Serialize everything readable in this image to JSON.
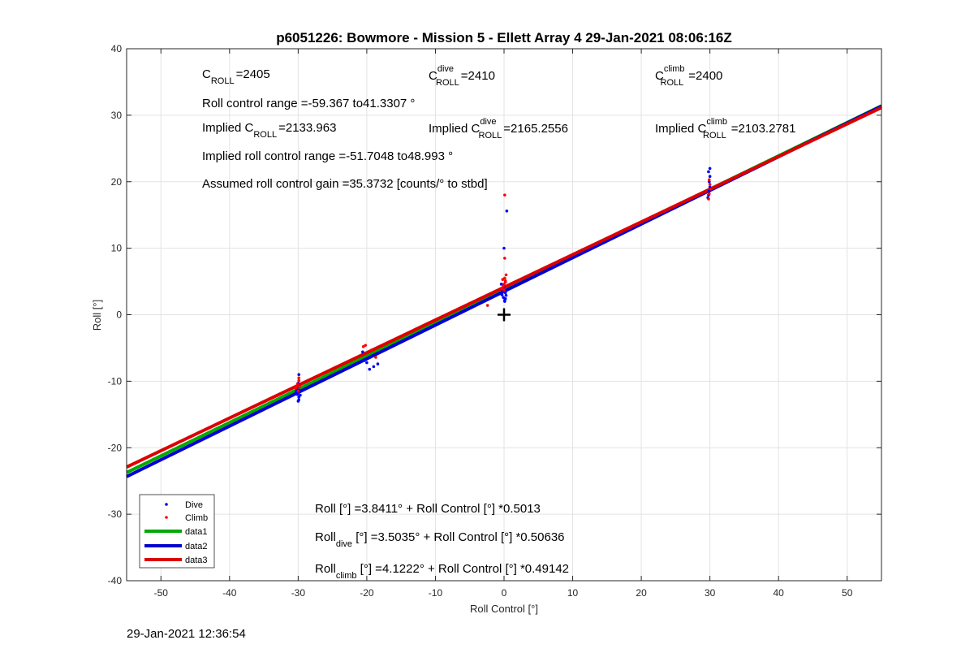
{
  "chart_data": {
    "type": "scatter",
    "title": "p6051226: Bowmore - Mission 5 - Ellett Array 4 29-Jan-2021 08:06:16Z",
    "xlabel": "Roll Control [°]",
    "ylabel": "Roll [°]",
    "xlim": [
      -55,
      55
    ],
    "ylim": [
      -40,
      40
    ],
    "xticks": [
      -50,
      -40,
      -30,
      -20,
      -10,
      0,
      10,
      20,
      30,
      40,
      50
    ],
    "yticks": [
      -40,
      -30,
      -20,
      -10,
      0,
      10,
      20,
      30,
      40
    ],
    "grid": true,
    "legend_position": "bottom-left",
    "legend": [
      "Dive",
      "Climb",
      "data1",
      "data2",
      "data3"
    ],
    "colors": {
      "dive": "#0000ff",
      "climb": "#ff0000",
      "data1": "#00aa00",
      "data2": "#0000d0",
      "data3": "#dd0000"
    },
    "series": [
      {
        "name": "Dive",
        "style": "points",
        "points": [
          [
            -29.9,
            -12.4
          ],
          [
            -30.1,
            -12.0
          ],
          [
            -30.0,
            -11.7
          ],
          [
            -29.8,
            -11.4
          ],
          [
            -30.2,
            -11.2
          ],
          [
            -29.9,
            -12.8
          ],
          [
            -30.0,
            -13.0
          ],
          [
            -30.1,
            -10.9
          ],
          [
            -29.7,
            -12.1
          ],
          [
            -30.3,
            -11.6
          ],
          [
            -29.9,
            -9.0
          ],
          [
            -30.0,
            -10.3
          ],
          [
            -20.4,
            -6.9
          ],
          [
            -20.0,
            -7.2
          ],
          [
            -19.6,
            -8.2
          ],
          [
            -19.0,
            -7.8
          ],
          [
            -18.4,
            -7.4
          ],
          [
            -20.6,
            -5.6
          ],
          [
            -0.3,
            3.0
          ],
          [
            -0.1,
            2.6
          ],
          [
            0.1,
            2.2
          ],
          [
            0.2,
            3.3
          ],
          [
            -0.2,
            3.7
          ],
          [
            0.0,
            4.2
          ],
          [
            0.3,
            2.9
          ],
          [
            -0.4,
            4.6
          ],
          [
            0.1,
            2.0
          ],
          [
            0.0,
            10.0
          ],
          [
            0.4,
            15.6
          ],
          [
            -0.1,
            3.5
          ],
          [
            0.2,
            2.4
          ],
          [
            29.8,
            18.0
          ],
          [
            29.9,
            18.6
          ],
          [
            30.0,
            19.2
          ],
          [
            29.9,
            20.0
          ],
          [
            30.0,
            20.8
          ],
          [
            29.8,
            21.5
          ],
          [
            30.0,
            22.0
          ],
          [
            29.7,
            17.6
          ]
        ]
      },
      {
        "name": "Climb",
        "style": "points",
        "points": [
          [
            -29.9,
            -9.5
          ],
          [
            -30.1,
            -10.4
          ],
          [
            -29.8,
            -10.9
          ],
          [
            -30.0,
            -11.5
          ],
          [
            -30.2,
            -10.7
          ],
          [
            -29.9,
            -9.9
          ],
          [
            -30.3,
            -11.0
          ],
          [
            -20.5,
            -4.8
          ],
          [
            -20.2,
            -4.6
          ],
          [
            -19.3,
            -5.3
          ],
          [
            -18.7,
            -6.4
          ],
          [
            -2.4,
            1.4
          ],
          [
            -0.3,
            3.9
          ],
          [
            0.0,
            4.6
          ],
          [
            0.2,
            5.1
          ],
          [
            0.1,
            5.5
          ],
          [
            -0.1,
            4.3
          ],
          [
            0.3,
            6.0
          ],
          [
            0.0,
            3.7
          ],
          [
            0.2,
            4.9
          ],
          [
            0.1,
            8.5
          ],
          [
            0.1,
            18.0
          ],
          [
            -0.2,
            5.3
          ],
          [
            29.8,
            17.4
          ],
          [
            29.9,
            18.2
          ],
          [
            30.0,
            19.6
          ],
          [
            29.9,
            20.3
          ],
          [
            30.1,
            18.9
          ]
        ]
      },
      {
        "name": "data1",
        "style": "line",
        "intercept": 3.8411,
        "slope": 0.5013
      },
      {
        "name": "data2",
        "style": "line",
        "intercept": 3.5035,
        "slope": 0.50636
      },
      {
        "name": "data3",
        "style": "line",
        "intercept": 4.1222,
        "slope": 0.49142
      }
    ],
    "marker": {
      "x": 0,
      "y": 0,
      "symbol": "+"
    }
  },
  "annotations": {
    "c_roll_prefix": "C",
    "c_roll_sub": "ROLL",
    "c_roll_value": "=2405",
    "c_dive_prefix": "C",
    "c_dive_sup": "dive",
    "c_dive_sub": "ROLL",
    "c_dive_value": "=2410",
    "c_climb_prefix": "C",
    "c_climb_sup": "climb",
    "c_climb_sub": "ROLL",
    "c_climb_value": "=2400",
    "roll_control_range": "Roll control range =-59.367 to41.3307 °",
    "implied_c_prefix": "Implied C",
    "implied_c_sub": "ROLL",
    "implied_c_value": "=2133.963",
    "implied_dive_prefix": "Implied C",
    "implied_dive_sup": "dive",
    "implied_dive_sub": "ROLL",
    "implied_dive_value": "=2165.2556",
    "implied_climb_prefix": "Implied C",
    "implied_climb_sup": "climb",
    "implied_climb_sub": "ROLL",
    "implied_climb_value": "=2103.2781",
    "implied_range": "Implied roll control range =-51.7048 to48.993 °",
    "assumed_gain": "Assumed roll control gain =35.3732 [counts/° to stbd]",
    "fit_all": "Roll [°] =3.8411° + Roll Control [°] *0.5013",
    "fit_dive_prefix": "Roll",
    "fit_dive_sub": "dive",
    "fit_dive_rest": " [°] =3.5035° + Roll Control [°] *0.50636",
    "fit_climb_prefix": "Roll",
    "fit_climb_sub": "climb",
    "fit_climb_rest": " [°] =4.1222° + Roll Control [°] *0.49142"
  },
  "footer": {
    "timestamp": "29-Jan-2021 12:36:54"
  }
}
